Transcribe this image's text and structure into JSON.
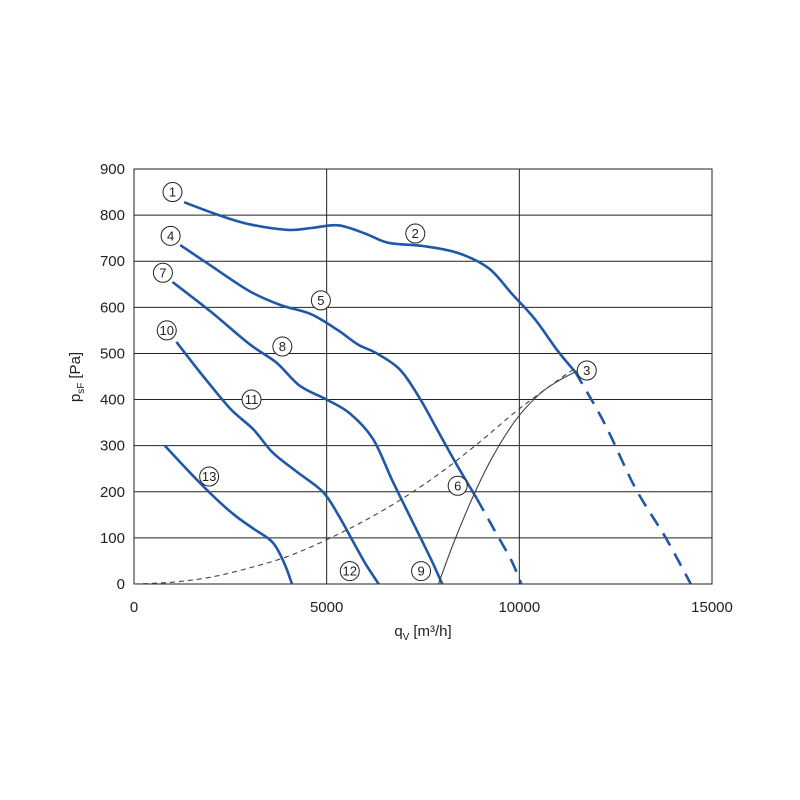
{
  "chart_data": {
    "type": "line",
    "xlabel": "q",
    "xlabel_sub": "V",
    "xlabel_unit": "[m³/h]",
    "ylabel": "p",
    "ylabel_sub": "sF",
    "ylabel_unit": "[Pa]",
    "xlim": [
      0,
      15000
    ],
    "ylim": [
      0,
      900
    ],
    "x_ticks": [
      "0",
      "5000",
      "10000",
      "15000"
    ],
    "y_ticks": [
      "0",
      "100",
      "200",
      "300",
      "400",
      "500",
      "600",
      "700",
      "800",
      "900"
    ],
    "grid": {
      "vertical_every": 5000,
      "horizontal_every": 100
    },
    "colors": {
      "curve": "#1f59a6",
      "reference": "#444444",
      "grid": "#222222"
    },
    "series": [
      {
        "id": "fan-curve-1-2",
        "style": "solid",
        "points": [
          [
            1300,
            828
          ],
          [
            2200,
            800
          ],
          [
            3000,
            780
          ],
          [
            4000,
            768
          ],
          [
            4600,
            772
          ],
          [
            5300,
            778
          ],
          [
            6000,
            760
          ],
          [
            6600,
            740
          ],
          [
            7500,
            733
          ],
          [
            8400,
            718
          ],
          [
            9200,
            685
          ],
          [
            9800,
            630
          ],
          [
            10400,
            575
          ],
          [
            11000,
            505
          ],
          [
            11450,
            460
          ]
        ]
      },
      {
        "id": "fan-curve-2-ext",
        "style": "dashed",
        "points": [
          [
            11450,
            460
          ],
          [
            12200,
            350
          ],
          [
            13000,
            210
          ],
          [
            13800,
            100
          ],
          [
            14450,
            0
          ]
        ]
      },
      {
        "id": "fan-curve-4-5",
        "style": "solid",
        "points": [
          [
            1200,
            735
          ],
          [
            2000,
            690
          ],
          [
            3000,
            635
          ],
          [
            3800,
            605
          ],
          [
            4600,
            585
          ],
          [
            5300,
            550
          ],
          [
            5800,
            520
          ],
          [
            6300,
            500
          ],
          [
            6900,
            465
          ],
          [
            7400,
            405
          ],
          [
            7900,
            330
          ],
          [
            8400,
            255
          ],
          [
            8900,
            185
          ]
        ]
      },
      {
        "id": "fan-curve-4-ext",
        "style": "dashed",
        "points": [
          [
            8900,
            185
          ],
          [
            9400,
            110
          ],
          [
            9800,
            50
          ],
          [
            10050,
            0
          ]
        ]
      },
      {
        "id": "fan-curve-7-8",
        "style": "solid",
        "points": [
          [
            1000,
            655
          ],
          [
            2000,
            590
          ],
          [
            3000,
            520
          ],
          [
            3700,
            480
          ],
          [
            4300,
            430
          ],
          [
            5000,
            400
          ],
          [
            5600,
            370
          ],
          [
            6200,
            315
          ],
          [
            6700,
            225
          ],
          [
            7200,
            140
          ],
          [
            7700,
            55
          ],
          [
            8000,
            0
          ]
        ]
      },
      {
        "id": "fan-curve-10-11",
        "style": "solid",
        "points": [
          [
            1100,
            525
          ],
          [
            1800,
            450
          ],
          [
            2500,
            380
          ],
          [
            3100,
            335
          ],
          [
            3600,
            285
          ],
          [
            4200,
            245
          ],
          [
            4900,
            200
          ],
          [
            5300,
            150
          ],
          [
            5700,
            90
          ],
          [
            6000,
            45
          ],
          [
            6350,
            0
          ]
        ]
      },
      {
        "id": "fan-curve-13",
        "style": "solid",
        "points": [
          [
            800,
            300
          ],
          [
            1300,
            255
          ],
          [
            2000,
            195
          ],
          [
            2600,
            150
          ],
          [
            3100,
            120
          ],
          [
            3600,
            90
          ],
          [
            3900,
            45
          ],
          [
            4100,
            0
          ]
        ]
      },
      {
        "id": "system-curve-parabola",
        "style": "dashed-thin",
        "points": [
          [
            0,
            0
          ],
          [
            1000,
            4
          ],
          [
            2000,
            15
          ],
          [
            3000,
            35
          ],
          [
            4000,
            60
          ],
          [
            5000,
            96
          ],
          [
            6000,
            138
          ],
          [
            7000,
            187
          ],
          [
            8000,
            244
          ],
          [
            9000,
            310
          ],
          [
            10000,
            380
          ],
          [
            11000,
            442
          ],
          [
            11400,
            465
          ]
        ]
      },
      {
        "id": "system-curve-efficiency",
        "style": "solid-thin",
        "points": [
          [
            7900,
            0
          ],
          [
            8300,
            90
          ],
          [
            8800,
            190
          ],
          [
            9300,
            275
          ],
          [
            9900,
            355
          ],
          [
            10500,
            410
          ],
          [
            11000,
            440
          ],
          [
            11500,
            462
          ]
        ]
      }
    ],
    "markers": [
      {
        "label": "1",
        "x": 1000,
        "y": 850
      },
      {
        "label": "2",
        "x": 7300,
        "y": 760
      },
      {
        "label": "3",
        "x": 11750,
        "y": 463
      },
      {
        "label": "4",
        "x": 950,
        "y": 755
      },
      {
        "label": "5",
        "x": 4850,
        "y": 615
      },
      {
        "label": "6",
        "x": 8400,
        "y": 213
      },
      {
        "label": "7",
        "x": 750,
        "y": 675
      },
      {
        "label": "8",
        "x": 3850,
        "y": 515
      },
      {
        "label": "9",
        "x": 7450,
        "y": 28
      },
      {
        "label": "10",
        "x": 850,
        "y": 550
      },
      {
        "label": "11",
        "x": 3050,
        "y": 400
      },
      {
        "label": "12",
        "x": 5600,
        "y": 28
      },
      {
        "label": "13",
        "x": 1950,
        "y": 233
      }
    ]
  }
}
